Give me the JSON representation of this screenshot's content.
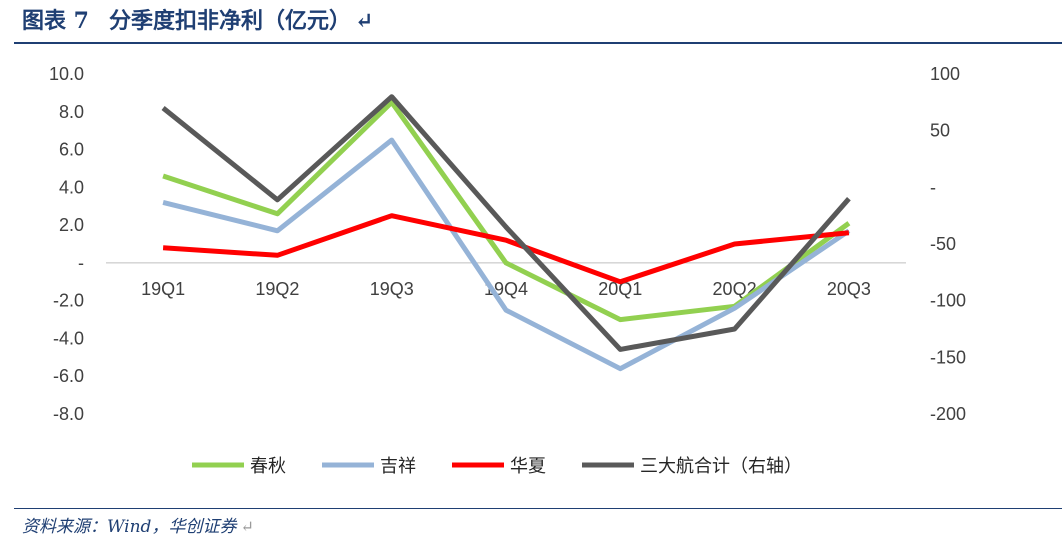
{
  "header": {
    "figure_label": "图表 7",
    "title": "分季度扣非净利（亿元）"
  },
  "footer": {
    "source": "资料来源：Wind，华创证券"
  },
  "chart_data": {
    "type": "line",
    "title": "分季度扣非净利（亿元）",
    "categories": [
      "19Q1",
      "19Q2",
      "19Q3",
      "19Q4",
      "20Q1",
      "20Q2",
      "20Q3"
    ],
    "y_left": {
      "range": [
        -8,
        10
      ],
      "ticks": [
        10,
        8,
        6,
        4,
        2,
        0,
        -2,
        -4,
        -6,
        -8
      ],
      "tick_labels": [
        "10.0",
        "8.0",
        "6.0",
        "4.0",
        "2.0",
        "-",
        "-2.0",
        "-4.0",
        "-6.0",
        "-8.0"
      ]
    },
    "y_right": {
      "range": [
        -200,
        100
      ],
      "ticks": [
        100,
        50,
        0,
        -50,
        -100,
        -150,
        -200
      ],
      "tick_labels": [
        "100",
        "50",
        "-",
        "-50",
        "-100",
        "-150",
        "-200"
      ]
    },
    "series": [
      {
        "name": "春秋",
        "axis": "left",
        "color": "#92d050",
        "values": [
          4.6,
          2.6,
          8.5,
          0.0,
          -3.0,
          -2.3,
          2.1
        ]
      },
      {
        "name": "吉祥",
        "axis": "left",
        "color": "#95b3d7",
        "values": [
          3.2,
          1.7,
          6.5,
          -2.5,
          -5.6,
          -2.4,
          1.7
        ]
      },
      {
        "name": "华夏",
        "axis": "left",
        "color": "#ff0000",
        "values": [
          0.8,
          0.4,
          2.5,
          1.2,
          -1.0,
          1.0,
          1.6
        ]
      },
      {
        "name": "三大航合计（右轴）",
        "axis": "right",
        "color": "#595959",
        "values": [
          70,
          -11,
          80,
          -35,
          -143,
          -125,
          -10
        ]
      }
    ],
    "legend_position": "bottom",
    "grid": false
  }
}
